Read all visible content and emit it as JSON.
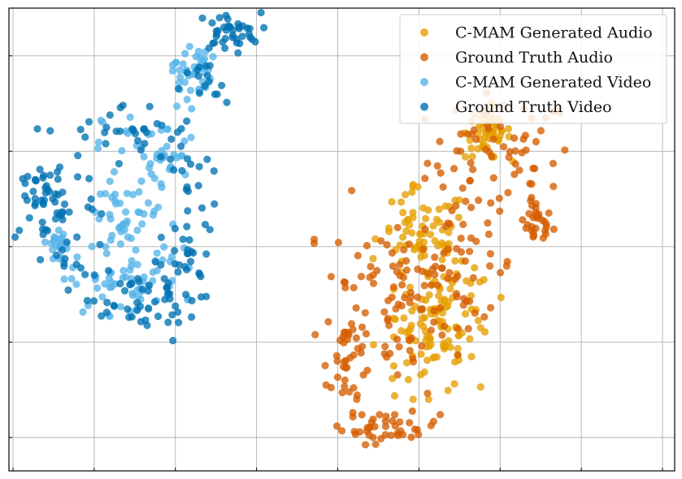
{
  "chart_data": {
    "type": "scatter",
    "title": "",
    "xlabel": "",
    "ylabel": "",
    "xlim": [
      -1.05,
      7.15
    ],
    "ylim": [
      -0.35,
      4.5
    ],
    "grid": true,
    "legend_placement": "top-right",
    "show_tick_labels": false,
    "series": [
      {
        "name": "C-MAM Generated Audio",
        "color": "#E69F00",
        "clusters": [
          {
            "cx": 4.85,
            "cy": 3.2,
            "sx": 0.14,
            "sy": 0.14,
            "n": 55
          },
          {
            "cx": 4.05,
            "cy": 2.1,
            "sx": 0.28,
            "sy": 0.25,
            "n": 70
          },
          {
            "cx": 4.35,
            "cy": 1.3,
            "sx": 0.3,
            "sy": 0.25,
            "n": 70
          },
          {
            "cx": 4.1,
            "cy": 0.95,
            "sx": 0.3,
            "sy": 0.25,
            "n": 45
          }
        ]
      },
      {
        "name": "Ground Truth Audio",
        "color": "#D55E00",
        "clusters": [
          {
            "cx": 5.0,
            "cy": 2.9,
            "sx": 0.45,
            "sy": 0.35,
            "n": 70
          },
          {
            "cx": 5.45,
            "cy": 2.25,
            "sx": 0.1,
            "sy": 0.12,
            "n": 28
          },
          {
            "cx": 3.7,
            "cy": 1.5,
            "sx": 0.45,
            "sy": 0.5,
            "n": 95
          },
          {
            "cx": 3.1,
            "cy": 0.8,
            "sx": 0.12,
            "sy": 0.35,
            "n": 35
          },
          {
            "cx": 3.65,
            "cy": 0.1,
            "sx": 0.3,
            "sy": 0.08,
            "n": 40
          },
          {
            "cx": 4.6,
            "cy": 1.8,
            "sx": 0.3,
            "sy": 0.3,
            "n": 35
          }
        ]
      },
      {
        "name": "C-MAM Generated Video",
        "color": "#56B4E9",
        "clusters": [
          {
            "cx": 1.2,
            "cy": 3.85,
            "sx": 0.12,
            "sy": 0.14,
            "n": 40
          },
          {
            "cx": 0.75,
            "cy": 3.0,
            "sx": 0.32,
            "sy": 0.22,
            "n": 40
          },
          {
            "cx": 0.45,
            "cy": 2.25,
            "sx": 0.3,
            "sy": 0.28,
            "n": 55
          },
          {
            "cx": 0.4,
            "cy": 1.6,
            "sx": 0.35,
            "sy": 0.15,
            "n": 55
          },
          {
            "cx": -0.45,
            "cy": 2.05,
            "sx": 0.12,
            "sy": 0.08,
            "n": 20
          }
        ]
      },
      {
        "name": "Ground Truth Video",
        "color": "#0072B2",
        "clusters": [
          {
            "cx": 1.65,
            "cy": 4.25,
            "sx": 0.2,
            "sy": 0.1,
            "n": 40
          },
          {
            "cx": 1.35,
            "cy": 3.65,
            "sx": 0.15,
            "sy": 0.15,
            "n": 15
          },
          {
            "cx": -0.55,
            "cy": 2.5,
            "sx": 0.3,
            "sy": 0.25,
            "n": 60
          },
          {
            "cx": 0.4,
            "cy": 3.2,
            "sx": 0.5,
            "sy": 0.15,
            "n": 30
          },
          {
            "cx": 1.15,
            "cy": 2.4,
            "sx": 0.15,
            "sy": 0.5,
            "n": 45
          },
          {
            "cx": 0.5,
            "cy": 1.4,
            "sx": 0.4,
            "sy": 0.2,
            "n": 45
          },
          {
            "cx": -0.3,
            "cy": 1.8,
            "sx": 0.2,
            "sy": 0.2,
            "n": 15
          }
        ]
      }
    ]
  }
}
